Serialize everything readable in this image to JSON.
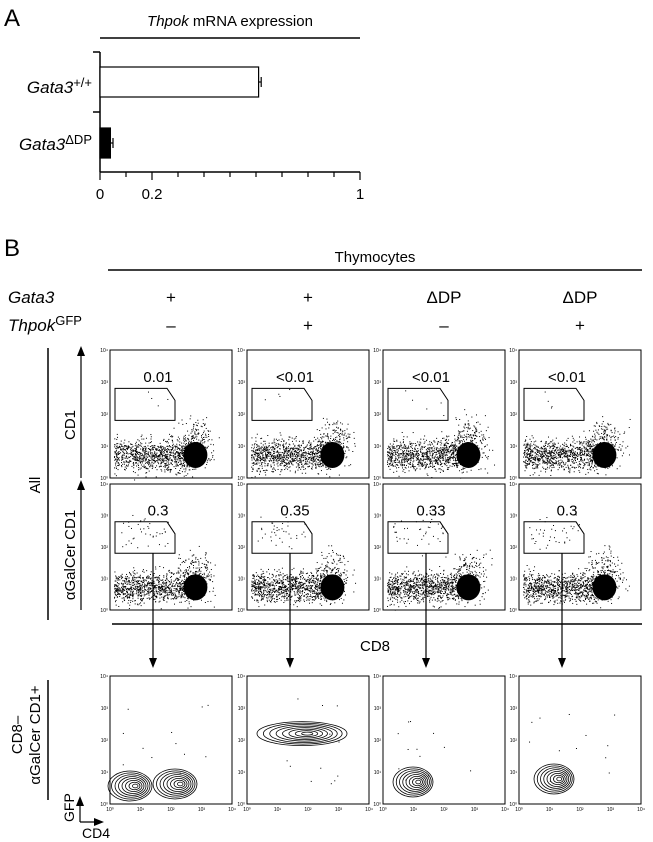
{
  "panel_a": {
    "label": "A",
    "title_italic": "Thpok",
    "title_rest": " mRNA expression",
    "rows": [
      {
        "gene": "Gata3",
        "sup": "+/+"
      },
      {
        "gene": "Gata3",
        "sup": "ΔDP"
      }
    ],
    "tick_labels": [
      "0",
      "0.2",
      "1"
    ]
  },
  "chart_data": {
    "type": "bar",
    "orientation": "horizontal",
    "title": "Thpok mRNA expression",
    "categories": [
      "Gata3+/+",
      "Gata3ΔDP"
    ],
    "values": [
      0.61,
      0.04
    ],
    "errors": [
      0.01,
      0.01
    ],
    "bar_colors": [
      "#ffffff",
      "#000000"
    ],
    "xlim": [
      0,
      1
    ],
    "xticks": [
      0,
      0.2,
      1
    ]
  },
  "panel_b": {
    "label": "B",
    "header": "Thymocytes",
    "gata3_label": "Gata3",
    "thpok_label": "Thpok",
    "thpok_sup": "GFP",
    "gata3_values": [
      "+",
      "+",
      "ΔDP",
      "ΔDP"
    ],
    "thpok_values": [
      "–",
      "+",
      "–",
      "+"
    ],
    "row_all": "All",
    "row_cd1": "CD1",
    "row_agalcer": "αGalCer CD1",
    "row_cd8neg_line1": "CD8–",
    "row_cd8neg_line2": "αGalCer CD1+",
    "cd8_axis": "CD8",
    "gfp_axis": "GFP",
    "cd4_axis": "CD4",
    "cd1_gates": [
      "0.01",
      "<0.01",
      "<0.01",
      "<0.01"
    ],
    "agalcer_gates": [
      "0.3",
      "0.35",
      "0.33",
      "0.3"
    ],
    "y_ticks": [
      "10⁰",
      "10¹",
      "10²",
      "10³",
      "10⁴"
    ],
    "x_ticks": [
      "10⁰",
      "10¹",
      "10²",
      "10³",
      "10⁴"
    ]
  }
}
